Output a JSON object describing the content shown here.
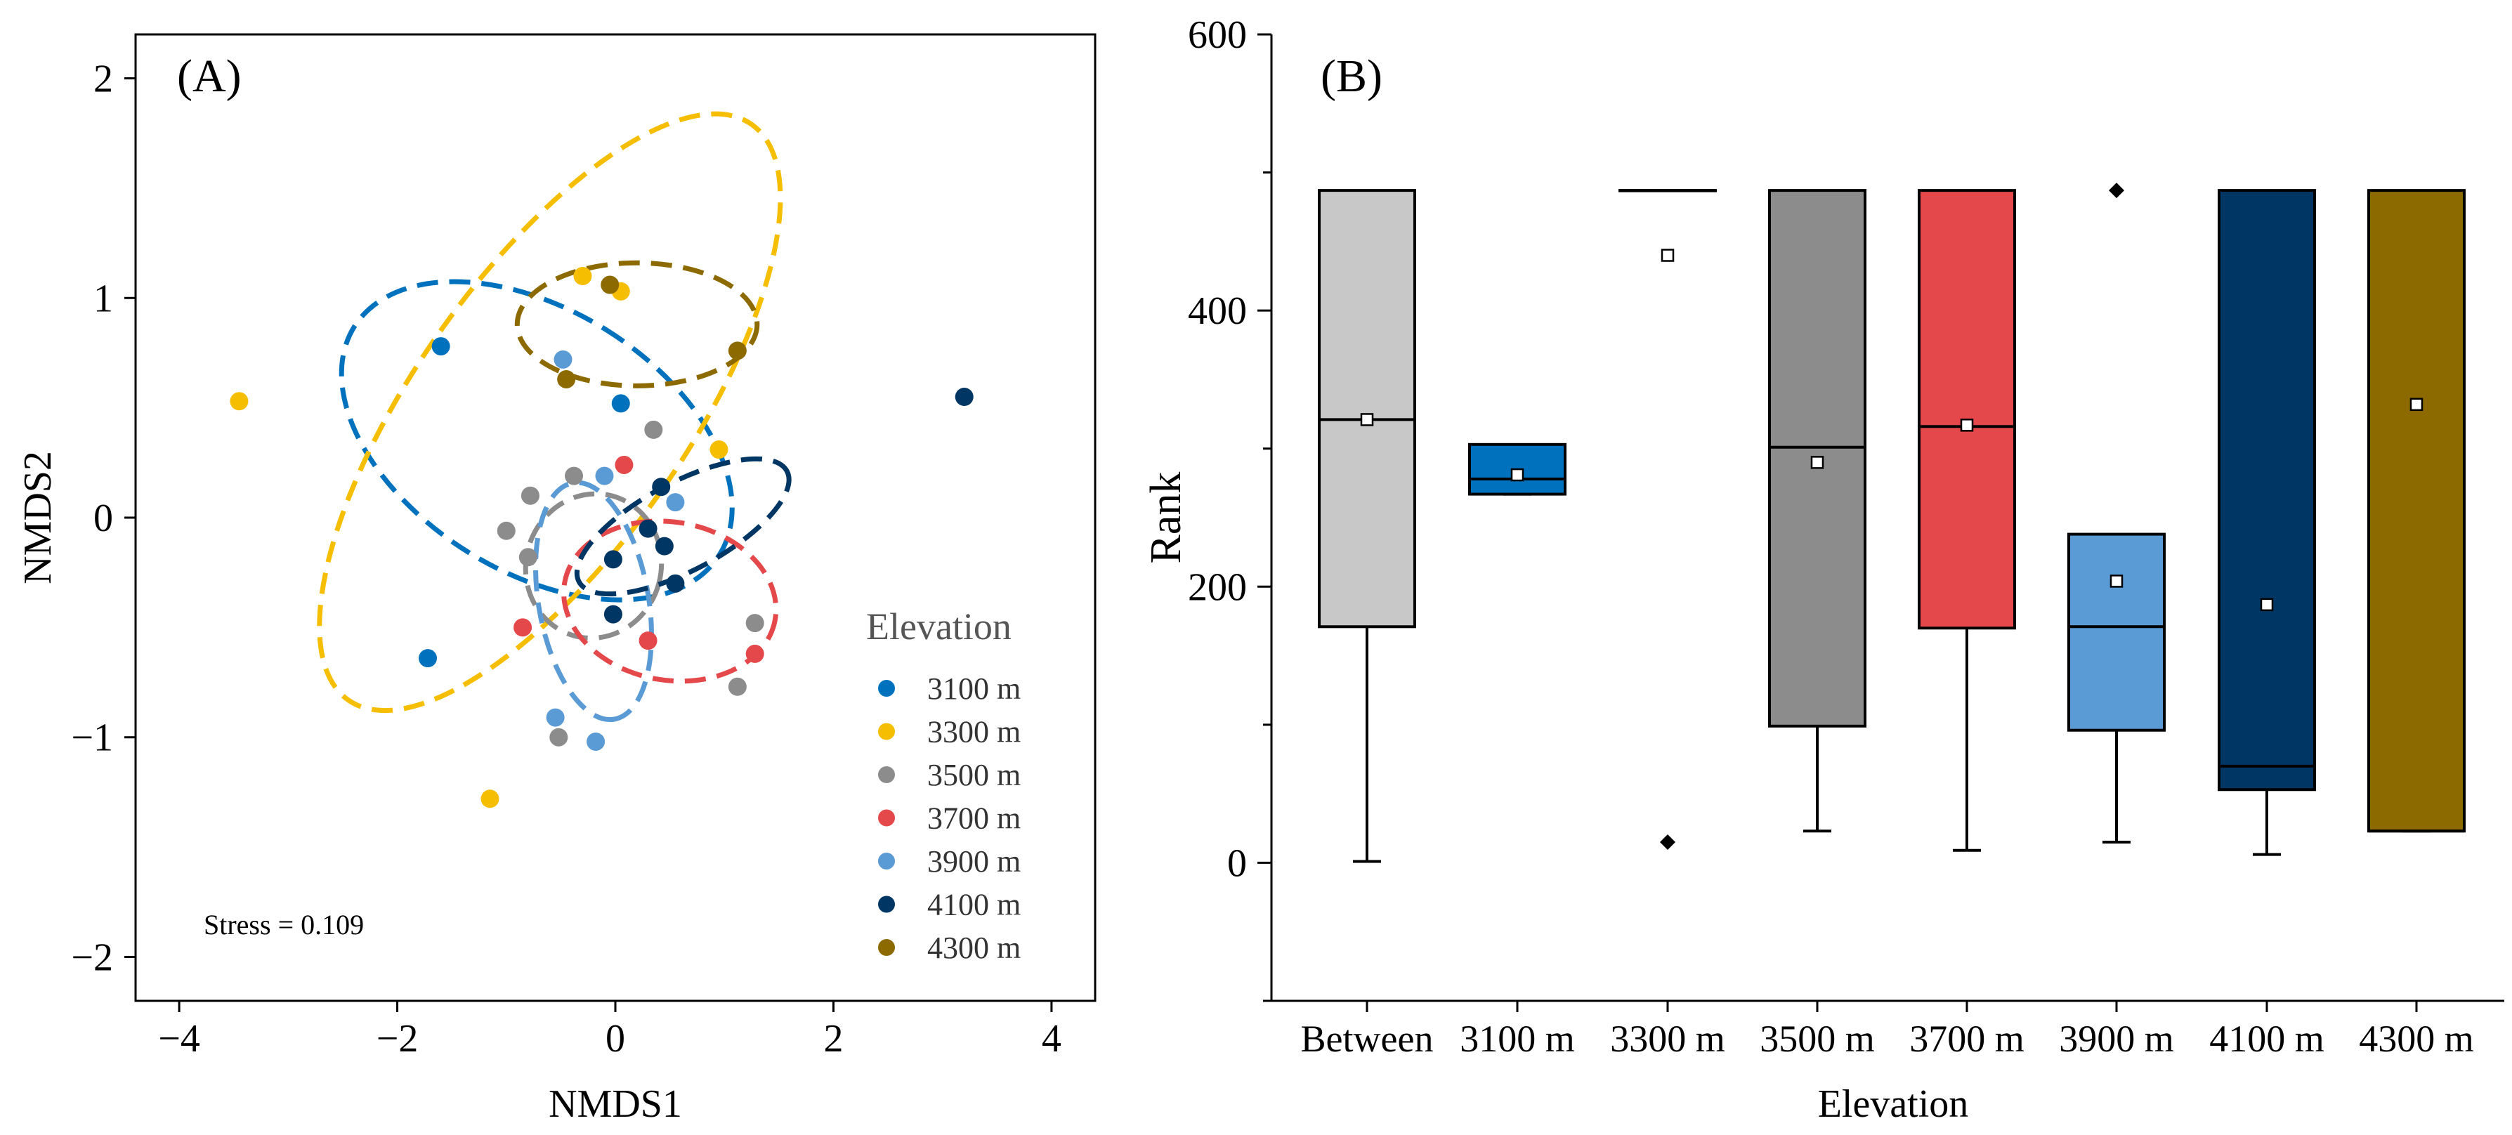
{
  "colors": {
    "3100 m": "#0072bd",
    "3300 m": "#f5be00",
    "3500 m": "#8c8c8c",
    "3700 m": "#e4484a",
    "3900 m": "#5b9bd5",
    "4100 m": "#003664",
    "4300 m": "#8c6a00",
    "Between": "#c8c8c8"
  },
  "chart_data": [
    {
      "type": "scatter",
      "panel_label": "(A)",
      "xlabel": "NMDS1",
      "ylabel": "NMDS2",
      "xlim": [
        -4.4,
        4.4
      ],
      "ylim": [
        -2.2,
        2.2
      ],
      "xticks": [
        -4,
        -2,
        0,
        2,
        4
      ],
      "yticks": [
        -2,
        -1,
        0,
        1,
        2
      ],
      "xtick_labels": [
        "−4",
        "−2",
        "0",
        "2",
        "4"
      ],
      "ytick_labels": [
        "−2",
        "−1",
        "0",
        "1",
        "2"
      ],
      "annotation": "Stress = 0.109",
      "legend_title": "Elevation",
      "legend_position": "lower-right",
      "series": [
        {
          "name": "3100 m",
          "points": [
            [
              -1.6,
              0.78
            ],
            [
              -1.72,
              -0.64
            ],
            [
              0.05,
              0.52
            ]
          ],
          "ellipse": {
            "cx": -0.72,
            "cy": 0.35,
            "rx": 1.2,
            "ry": 0.98,
            "angle": 58
          }
        },
        {
          "name": "3300 m",
          "points": [
            [
              -3.45,
              0.53
            ],
            [
              -0.3,
              1.1
            ],
            [
              0.05,
              1.03
            ],
            [
              0.95,
              0.31
            ],
            [
              -1.15,
              -1.28
            ]
          ],
          "ellipse": {
            "cx": -0.6,
            "cy": 0.48,
            "rx": 1.25,
            "ry": 1.6,
            "angle": -35
          }
        },
        {
          "name": "3500 m",
          "points": [
            [
              -1.0,
              -0.06
            ],
            [
              -0.78,
              0.1
            ],
            [
              -0.8,
              -0.18
            ],
            [
              -0.38,
              0.19
            ],
            [
              0.35,
              0.4
            ],
            [
              1.28,
              -0.48
            ],
            [
              1.12,
              -0.77
            ],
            [
              -0.52,
              -1.0
            ]
          ],
          "ellipse": {
            "cx": -0.2,
            "cy": -0.22,
            "rx": 0.62,
            "ry": 0.33,
            "angle": -15
          }
        },
        {
          "name": "3700 m",
          "points": [
            [
              0.08,
              0.24
            ],
            [
              -0.85,
              -0.5
            ],
            [
              0.3,
              -0.56
            ],
            [
              1.28,
              -0.62
            ]
          ],
          "ellipse": {
            "cx": 0.5,
            "cy": -0.38,
            "rx": 0.98,
            "ry": 0.36,
            "angle": -10
          }
        },
        {
          "name": "3900 m",
          "points": [
            [
              -0.48,
              0.72
            ],
            [
              -0.1,
              0.19
            ],
            [
              0.55,
              0.07
            ],
            [
              -0.55,
              -0.91
            ],
            [
              -0.18,
              -1.02
            ]
          ],
          "ellipse": {
            "cx": -0.2,
            "cy": -0.38,
            "rx": 1.1,
            "ry": 0.25,
            "angle": -80
          }
        },
        {
          "name": "4100 m",
          "points": [
            [
              3.2,
              0.55
            ],
            [
              0.42,
              0.14
            ],
            [
              0.3,
              -0.05
            ],
            [
              0.45,
              -0.13
            ],
            [
              0.55,
              -0.3
            ],
            [
              -0.02,
              -0.19
            ],
            [
              -0.02,
              -0.44
            ]
          ],
          "ellipse": {
            "cx": 0.62,
            "cy": -0.04,
            "rx": 1.08,
            "ry": 0.2,
            "angle": 28
          }
        },
        {
          "name": "4300 m",
          "points": [
            [
              -0.05,
              1.06
            ],
            [
              -0.45,
              0.63
            ],
            [
              1.12,
              0.76
            ]
          ],
          "ellipse": {
            "cx": 0.2,
            "cy": 0.88,
            "rx": 1.1,
            "ry": 0.28,
            "angle": 0
          }
        }
      ]
    },
    {
      "type": "box",
      "panel_label": "(B)",
      "xlabel": "Elevation",
      "ylabel": "Rank",
      "ylim": [
        -100,
        600
      ],
      "yticks": [
        0,
        200,
        400,
        600
      ],
      "ytick_labels": [
        "0",
        "200",
        "400",
        "600"
      ],
      "categories": [
        "Between",
        "3100 m",
        "3300 m",
        "3500 m",
        "3700 m",
        "3900 m",
        "4100 m",
        "4300 m"
      ],
      "boxes": [
        {
          "category": "Between",
          "whisker_low": 1,
          "q1": 171,
          "median": 321,
          "q3": 487,
          "whisker_high": 487,
          "mean": 321,
          "outliers": []
        },
        {
          "category": "3100 m",
          "whisker_low": 267,
          "q1": 267,
          "median": 278,
          "q3": 303,
          "whisker_high": 303,
          "mean": 281,
          "outliers": []
        },
        {
          "category": "3300 m",
          "whisker_low": 487,
          "q1": 487,
          "median": 487,
          "q3": 487,
          "whisker_high": 487,
          "mean": 440,
          "outliers": [
            15
          ]
        },
        {
          "category": "3500 m",
          "whisker_low": 23,
          "q1": 99,
          "median": 301,
          "q3": 487,
          "whisker_high": 487,
          "mean": 290,
          "outliers": []
        },
        {
          "category": "3700 m",
          "whisker_low": 9,
          "q1": 170,
          "median": 316,
          "q3": 487,
          "whisker_high": 487,
          "mean": 317,
          "outliers": []
        },
        {
          "category": "3900 m",
          "whisker_low": 15,
          "q1": 96,
          "median": 171,
          "q3": 238,
          "whisker_high": 238,
          "mean": 204,
          "outliers": [
            487
          ]
        },
        {
          "category": "4100 m",
          "whisker_low": 6,
          "q1": 53,
          "median": 70,
          "q3": 487,
          "whisker_high": 487,
          "mean": 187,
          "outliers": []
        },
        {
          "category": "4300 m",
          "whisker_low": 23,
          "q1": 23,
          "median": 23,
          "q3": 487,
          "whisker_high": 487,
          "mean": 332,
          "outliers": []
        }
      ]
    }
  ]
}
